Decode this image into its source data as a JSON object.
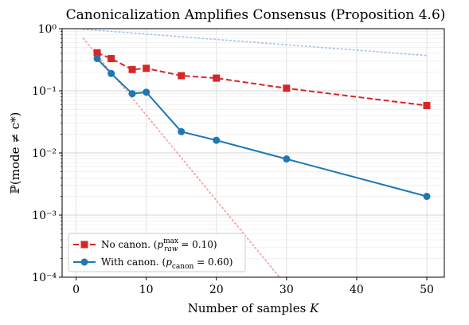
{
  "chart_data": {
    "type": "line",
    "title": "Canonicalization Amplifies Consensus (Proposition 4.6)",
    "xlabel": "Number of samples K",
    "ylabel": "ℙ(mode ≠ c*)",
    "x_ticks": [
      "0",
      "10",
      "20",
      "30",
      "40",
      "50"
    ],
    "y_ticks": [
      "10⁻⁴",
      "10⁻³",
      "10⁻²",
      "10⁻¹",
      "10⁰"
    ],
    "xlim": [
      -2,
      52.5
    ],
    "ylim": [
      0.0001,
      1
    ],
    "yscale": "log",
    "grid": true,
    "legend_position": "lower-left",
    "x": [
      3,
      5,
      8,
      10,
      15,
      20,
      30,
      50
    ],
    "series": [
      {
        "name": "No canon. (p_raw^max = 0.10)",
        "legend_label": "No canon. (",
        "legend_symbol": "p",
        "legend_sub": "raw",
        "legend_sup": "max",
        "legend_value": " = 0.10)",
        "color": "#d62728",
        "marker": "square",
        "linestyle": "dashed",
        "values": [
          0.41,
          0.33,
          0.22,
          0.23,
          0.175,
          0.16,
          0.11,
          0.058
        ]
      },
      {
        "name": "With canon. (p_canon = 0.60)",
        "legend_label": "With canon. (",
        "legend_symbol": "p",
        "legend_sub": "canon",
        "legend_sup": "",
        "legend_value": " = 0.60)",
        "color": "#1f77b4",
        "marker": "circle",
        "linestyle": "solid",
        "values": [
          0.33,
          0.19,
          0.09,
          0.095,
          0.022,
          0.016,
          0.008,
          0.002
        ]
      }
    ],
    "reference_lines": [
      {
        "color": "#aec7e8",
        "linestyle": "dotted",
        "x": [
          1,
          50
        ],
        "values": [
          0.98,
          0.37
        ]
      },
      {
        "color": "#f4a6a6",
        "linestyle": "dotted",
        "x": [
          1,
          29
        ],
        "values": [
          0.7,
          0.0001
        ]
      }
    ]
  }
}
